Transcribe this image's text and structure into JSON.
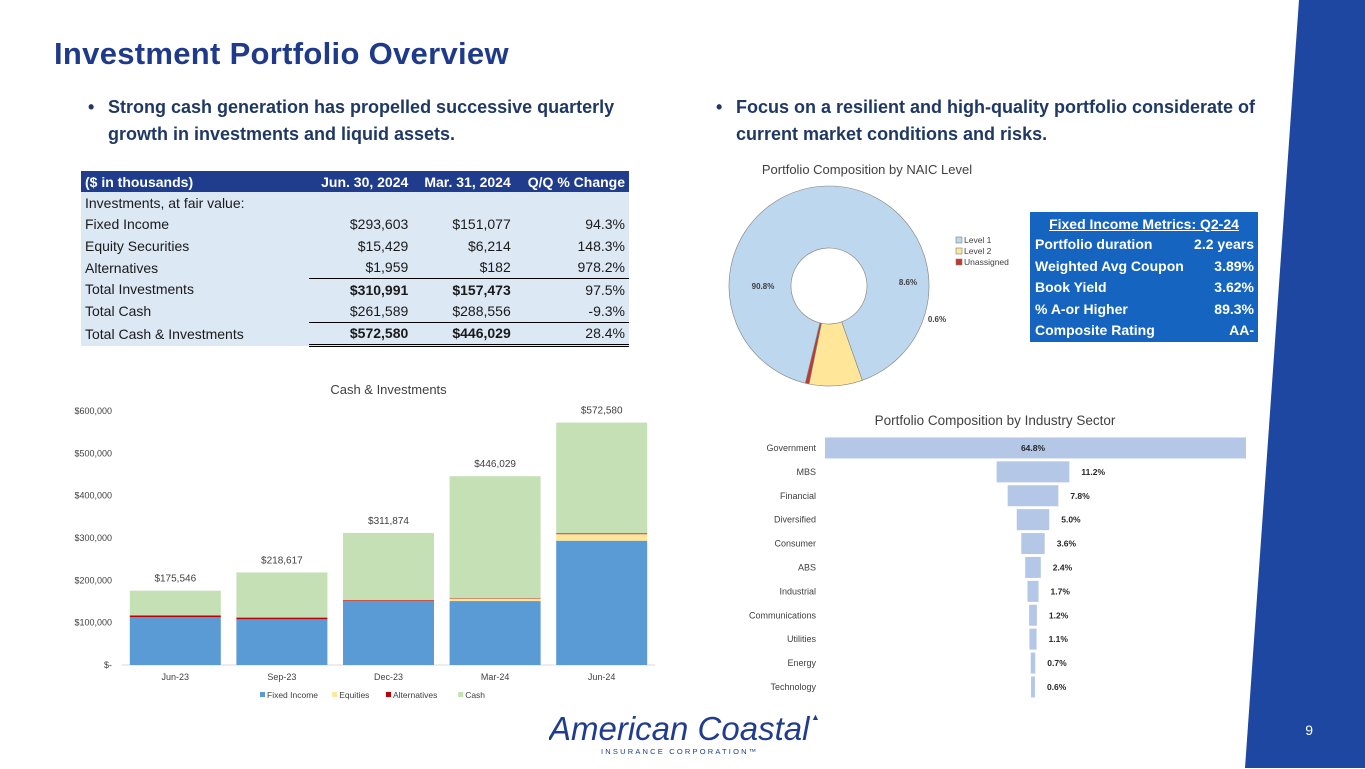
{
  "title": "Investment Portfolio Overview",
  "bullets": {
    "left": "Strong cash generation has propelled successive quarterly growth in investments and liquid assets.",
    "right": "Focus on a resilient and high-quality portfolio considerate of current market conditions and risks."
  },
  "table": {
    "headers": [
      "($ in thousands)",
      "Jun. 30, 2024",
      "Mar. 31, 2024",
      "Q/Q % Change"
    ],
    "section": "Investments, at fair value:",
    "rows": [
      [
        "Fixed Income",
        "$293,603",
        "$151,077",
        "94.3%"
      ],
      [
        "Equity Securities",
        "$15,429",
        "$6,214",
        "148.3%"
      ],
      [
        "Alternatives",
        "$1,959",
        "$182",
        "978.2%"
      ],
      [
        "Total Investments",
        "$310,991",
        "$157,473",
        "97.5%"
      ],
      [
        "Total Cash",
        "$261,589",
        "$288,556",
        "-9.3%"
      ],
      [
        "Total Cash & Investments",
        "$572,580",
        "$446,029",
        "28.4%"
      ]
    ]
  },
  "metrics": {
    "title": "Fixed Income Metrics: Q2-24",
    "rows": [
      {
        "label": "Portfolio duration",
        "value": "2.2 years"
      },
      {
        "label": "Weighted Avg Coupon",
        "value": "3.89%"
      },
      {
        "label": "Book Yield",
        "value": "3.62%"
      },
      {
        "label": "% A-or Higher",
        "value": "89.3%"
      },
      {
        "label": "Composite Rating",
        "value": "AA-"
      }
    ]
  },
  "page_number": "9",
  "logo": {
    "name": "American Coastal",
    "subtitle": "INSURANCE CORPORATION™"
  },
  "colors": {
    "navy": "#1f3d8c",
    "fixed_income": "#5b9bd5",
    "equities": "#ffe699",
    "alternatives": "#c00000",
    "cash": "#c5e0b4",
    "level1": "#bdd7ee",
    "level2": "#ffe699",
    "unassigned": "#c0392b",
    "sector_bar": "#b4c7e7"
  },
  "chart_data": [
    {
      "id": "cash",
      "type": "bar",
      "stacked": true,
      "title": "Cash & Investments",
      "categories": [
        "Jun-23",
        "Sep-23",
        "Dec-23",
        "Mar-24",
        "Jun-24"
      ],
      "series": [
        {
          "name": "Fixed Income",
          "values": [
            113000,
            108000,
            151000,
            151077,
            293603
          ]
        },
        {
          "name": "Equities",
          "values": [
            0,
            0,
            0,
            6214,
            15429
          ]
        },
        {
          "name": "Alternatives",
          "values": [
            4000,
            4000,
            2000,
            182,
            1959
          ]
        },
        {
          "name": "Cash",
          "values": [
            58546,
            106617,
            158874,
            288556,
            261589
          ]
        }
      ],
      "totals": [
        "$175,546",
        "$218,617",
        "$311,874",
        "$446,029",
        "$572,580"
      ],
      "total_values": [
        175546,
        218617,
        311874,
        446029,
        572580
      ],
      "ylim": [
        0,
        600000
      ],
      "yticks": [
        0,
        100000,
        200000,
        300000,
        400000,
        500000,
        600000
      ],
      "ytick_labels": [
        "$-",
        "$100,000",
        "$200,000",
        "$300,000",
        "$400,000",
        "$500,000",
        "$600,000"
      ],
      "legend": "bottom"
    },
    {
      "id": "naic",
      "type": "pie",
      "donut": true,
      "title": "Portfolio Composition by NAIC Level",
      "labels": [
        "Level 1",
        "Level 2",
        "Unassigned"
      ],
      "values": [
        90.8,
        8.6,
        0.6
      ],
      "value_labels": [
        "90.8%",
        "8.6%",
        "0.6%"
      ],
      "legend": "right"
    },
    {
      "id": "sector",
      "type": "bar",
      "orientation": "horizontal",
      "title": "Portfolio Composition by Industry Sector",
      "categories": [
        "Government",
        "MBS",
        "Financial",
        "Diversified",
        "Consumer",
        "ABS",
        "Industrial",
        "Communications",
        "Utilities",
        "Energy",
        "Technology"
      ],
      "values": [
        64.8,
        11.2,
        7.8,
        5.0,
        3.6,
        2.4,
        1.7,
        1.2,
        1.1,
        0.7,
        0.6
      ],
      "value_labels": [
        "64.8%",
        "11.2%",
        "7.8%",
        "5.0%",
        "3.6%",
        "2.4%",
        "1.7%",
        "1.2%",
        "1.1%",
        "0.7%",
        "0.6%"
      ]
    }
  ]
}
